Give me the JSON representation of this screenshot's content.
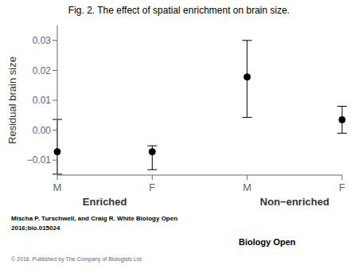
{
  "chart_data": {
    "type": "scatter",
    "title": "Fig. 2. The effect of spatial enrichment on brain size.",
    "ylabel": "Residual brain size",
    "categories": [
      "M",
      "F",
      "M",
      "F"
    ],
    "group_labels": [
      "Enriched",
      "Non−enriched"
    ],
    "values": [
      -0.0072,
      -0.0072,
      0.0178,
      0.0035
    ],
    "error_lower": [
      0.0075,
      0.006,
      0.0135,
      0.0045
    ],
    "error_upper": [
      0.0108,
      0.002,
      0.0122,
      0.0045
    ],
    "color": "#000000",
    "ylim": [
      -0.015,
      0.035
    ],
    "yticks": [
      {
        "value": -0.01,
        "label": "−0.01"
      },
      {
        "value": 0,
        "label": "0.00"
      },
      0.01,
      0.02,
      0.03
    ],
    "grid": false,
    "annotations": [
      "Mischa P. Turschwell, and Craig R. White Biology Open",
      "2016;bio.015024",
      "© 2016. Published by The Company of Biologists Ltd",
      "Biology Open"
    ]
  }
}
